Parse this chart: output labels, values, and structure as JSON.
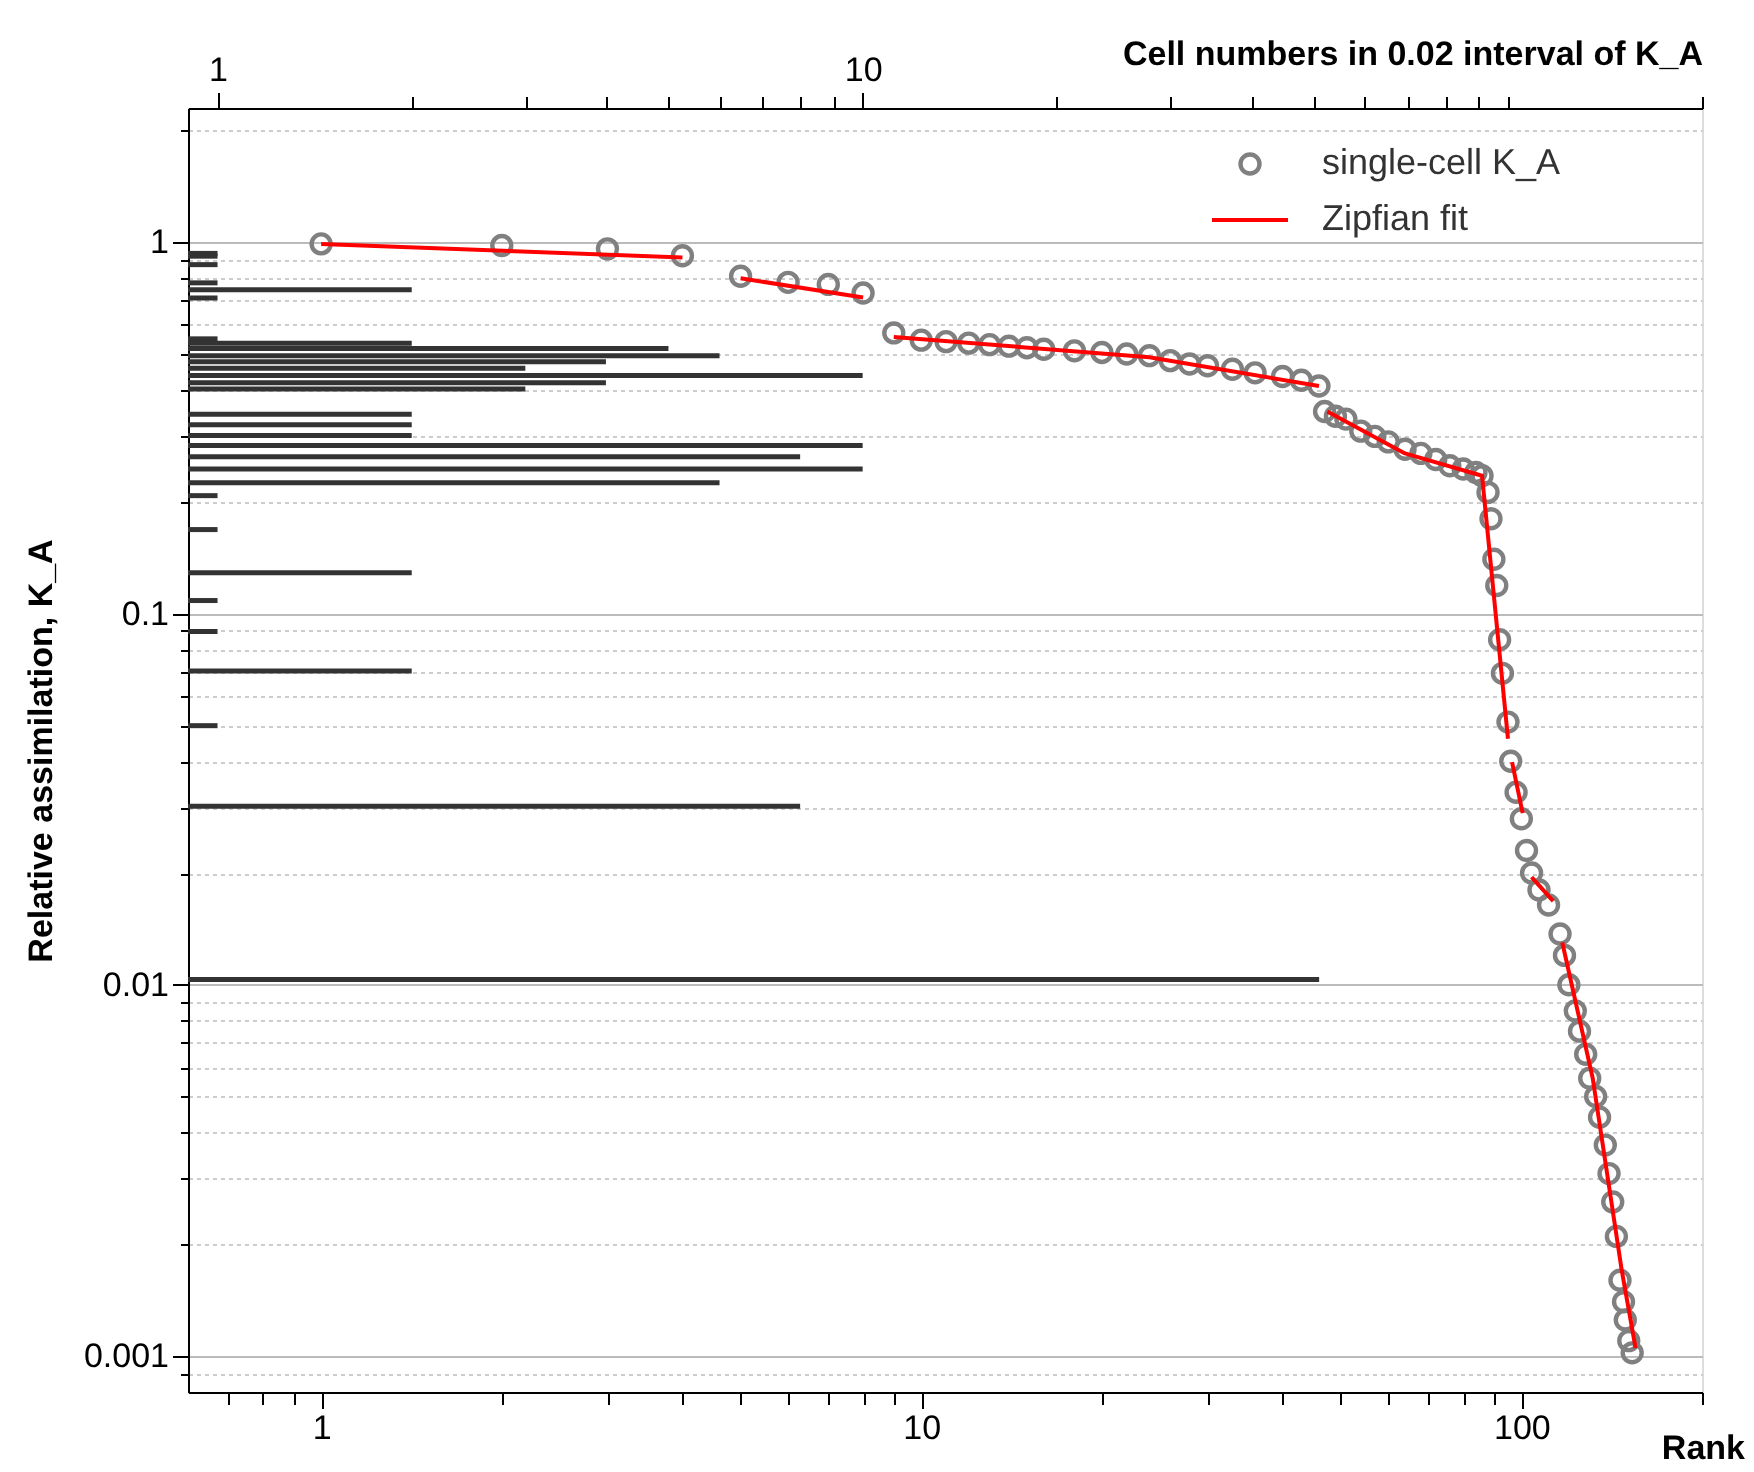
{
  "chart_data": [
    {
      "type": "scatter",
      "xlabel": "Rank",
      "ylabel": "Relative assimilation, K_A",
      "log": "xy",
      "grid": "y",
      "legend": "top right",
      "xlim": [
        0.6,
        200
      ],
      "ylim": [
        0.0008,
        2.3
      ],
      "xticks": [
        {
          "value": 0.7,
          "label": null
        },
        {
          "value": 0.8,
          "label": null
        },
        {
          "value": 0.9,
          "label": null
        },
        1,
        {
          "value": 2,
          "label": null
        },
        {
          "value": 3,
          "label": null
        },
        {
          "value": 4,
          "label": null
        },
        {
          "value": 5,
          "label": null
        },
        {
          "value": 6,
          "label": null
        },
        {
          "value": 7,
          "label": null
        },
        {
          "value": 8,
          "label": null
        },
        {
          "value": 9,
          "label": null
        },
        10,
        {
          "value": 20,
          "label": null
        },
        {
          "value": 30,
          "label": null
        },
        {
          "value": 40,
          "label": null
        },
        {
          "value": 50,
          "label": null
        },
        {
          "value": 60,
          "label": null
        },
        {
          "value": 70,
          "label": null
        },
        {
          "value": 80,
          "label": null
        },
        {
          "value": 90,
          "label": null
        },
        100,
        {
          "value": 200,
          "label": null
        }
      ],
      "yticks": [
        {
          "value": 0.0009,
          "label": null
        },
        0.001,
        {
          "value": 0.002,
          "label": null
        },
        {
          "value": 0.003,
          "label": null
        },
        {
          "value": 0.004,
          "label": null
        },
        {
          "value": 0.005,
          "label": null
        },
        {
          "value": 0.006,
          "label": null
        },
        {
          "value": 0.007,
          "label": null
        },
        {
          "value": 0.008,
          "label": null
        },
        {
          "value": 0.009,
          "label": null
        },
        0.01,
        {
          "value": 0.02,
          "label": null
        },
        {
          "value": 0.03,
          "label": null
        },
        {
          "value": 0.04,
          "label": null
        },
        {
          "value": 0.05,
          "label": null
        },
        {
          "value": 0.06,
          "label": null
        },
        {
          "value": 0.07,
          "label": null
        },
        {
          "value": 0.08,
          "label": null
        },
        {
          "value": 0.09,
          "label": null
        },
        0.1,
        {
          "value": 0.2,
          "label": null
        },
        {
          "value": 0.3,
          "label": null
        },
        {
          "value": 0.4,
          "label": null
        },
        {
          "value": 0.5,
          "label": null
        },
        {
          "value": 0.6,
          "label": null
        },
        {
          "value": 0.7,
          "label": null
        },
        {
          "value": 0.8,
          "label": null
        },
        {
          "value": 0.9,
          "label": null
        },
        1,
        {
          "value": 2,
          "label": null
        }
      ],
      "series": [
        {
          "type": "scatter",
          "name": "single-cell K_A",
          "color": "#808080",
          "marker": "circle",
          "x": [
            1,
            2,
            3,
            4,
            5,
            6,
            7,
            8,
            9,
            10,
            11,
            12,
            13,
            14,
            15,
            16,
            18,
            20,
            22,
            24,
            26,
            28,
            30,
            33,
            36,
            40,
            43,
            46,
            47,
            49,
            51,
            54,
            57,
            60,
            64,
            68,
            72,
            76,
            80,
            84,
            86,
            88,
            89,
            90,
            91,
            92,
            93,
            95,
            96,
            98,
            100,
            102,
            104,
            107,
            111,
            116,
            118,
            120,
            123,
            125,
            128,
            130,
            133,
            135,
            138,
            140,
            142,
            144,
            146,
            148,
            149,
            151,
            153
          ],
          "values": [
            0.99,
            0.98,
            0.96,
            0.92,
            0.81,
            0.78,
            0.77,
            0.73,
            0.57,
            0.545,
            0.54,
            0.535,
            0.53,
            0.525,
            0.52,
            0.515,
            0.51,
            0.505,
            0.5,
            0.495,
            0.48,
            0.47,
            0.465,
            0.455,
            0.445,
            0.435,
            0.425,
            0.41,
            0.35,
            0.34,
            0.334,
            0.31,
            0.3,
            0.29,
            0.277,
            0.27,
            0.26,
            0.25,
            0.245,
            0.24,
            0.235,
            0.212,
            0.18,
            0.14,
            0.119,
            0.085,
            0.069,
            0.051,
            0.04,
            0.033,
            0.028,
            0.023,
            0.02,
            0.018,
            0.0164,
            0.0137,
            0.012,
            0.01,
            0.0085,
            0.0075,
            0.0065,
            0.0056,
            0.005,
            0.0044,
            0.0037,
            0.0031,
            0.0026,
            0.0021,
            0.0016,
            0.0014,
            0.00125,
            0.0011,
            0.00102
          ]
        },
        {
          "type": "line",
          "name": "Zipfian fit",
          "color": "#ff0000",
          "line_style": "solid",
          "marker": "none",
          "x": [
            1,
            4,
            4.5,
            5,
            8,
            8.5,
            9,
            24,
            46,
            47,
            47.5,
            64,
            86,
            95,
            95.7,
            96.5,
            100.5,
            102,
            104,
            113,
            115,
            117,
            131.5,
            147,
            155
          ],
          "values": [
            0.99,
            0.91,
            null,
            0.8,
            0.71,
            null,
            0.556,
            0.49,
            0.41,
            null,
            0.35,
            0.27,
            0.235,
            0.046,
            null,
            0.0398,
            0.029,
            null,
            0.0195,
            0.0168,
            null,
            0.013,
            0.0056,
            0.0017,
            0.00105
          ]
        }
      ]
    },
    {
      "type": "bar",
      "orientation": "horizontal",
      "xlabel": "Cell numbers in 0.02 interval of K_A",
      "log": "xy",
      "tick_labels": "x",
      "xlim": [
        0.9,
        200
      ],
      "ylim": [
        0.0008,
        2.3
      ],
      "xticks": [
        1,
        {
          "value": 2,
          "label": null
        },
        {
          "value": 3,
          "label": null
        },
        {
          "value": 4,
          "label": null
        },
        {
          "value": 5,
          "label": null
        },
        {
          "value": 6,
          "label": null
        },
        {
          "value": 7,
          "label": null
        },
        {
          "value": 8,
          "label": null
        },
        {
          "value": 9,
          "label": null
        },
        10,
        {
          "value": 20,
          "label": null
        },
        {
          "value": 30,
          "label": null
        },
        {
          "value": 40,
          "label": null
        },
        {
          "value": 50,
          "label": null
        },
        {
          "value": 60,
          "label": null
        },
        {
          "value": 70,
          "label": null
        },
        {
          "value": 80,
          "label": null
        },
        {
          "value": 90,
          "label": null
        },
        {
          "value": 100,
          "label": null
        },
        {
          "value": 200,
          "label": null
        }
      ],
      "color": "#333333",
      "x": [
        0.98,
        0.963,
        0.913,
        0.814,
        0.78,
        0.74,
        0.572,
        0.556,
        0.538,
        0.514,
        0.495,
        0.475,
        0.454,
        0.434,
        0.417,
        0.356,
        0.333,
        0.311,
        0.292,
        0.272,
        0.252,
        0.231,
        0.213,
        0.172,
        0.131,
        0.11,
        0.0905,
        0.0706,
        0.05,
        0.0301,
        0.0101
      ],
      "values": [
        1,
        1,
        1,
        1,
        2,
        1,
        1,
        2,
        5,
        6,
        4,
        3,
        10,
        4,
        3,
        2,
        2,
        2,
        10,
        8,
        10,
        6,
        1,
        1,
        2,
        1,
        1,
        2,
        1,
        8,
        51
      ]
    }
  ]
}
